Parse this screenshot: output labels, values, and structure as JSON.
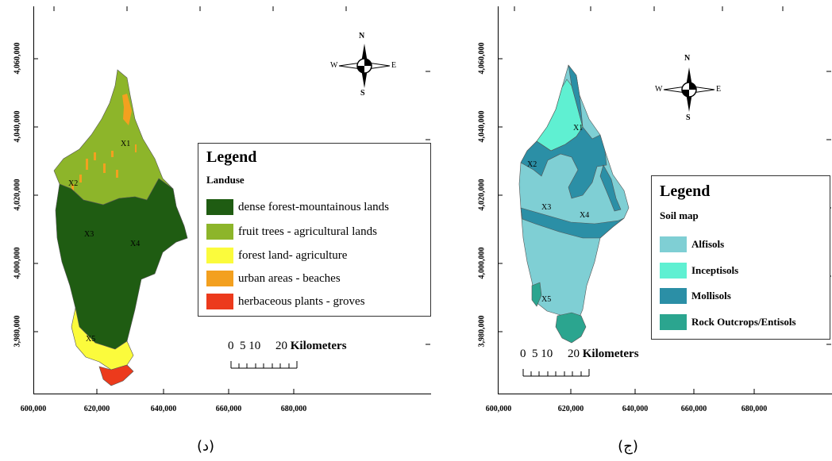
{
  "left_map": {
    "y_ticks": [
      "4,060,000",
      "4,040,000",
      "4,020,000",
      "4,000,000",
      "3,980,000"
    ],
    "x_ticks": [
      "600,000",
      "620,000",
      "640,000",
      "660,000",
      "680,000"
    ],
    "north_arrow": {
      "n": "N",
      "s": "S",
      "e": "E",
      "w": "W",
      "icon": "compass-rose-icon"
    },
    "legend": {
      "title": "Legend",
      "subtitle": "Landuse",
      "items": [
        {
          "label": "dense forest-mountainous lands",
          "color": "#1f5c12"
        },
        {
          "label": "fruit trees - agricultural lands",
          "color": "#8db52a"
        },
        {
          "label": "forest land- agriculture",
          "color": "#fbfb3c"
        },
        {
          "label": "urban areas - beaches",
          "color": "#f3a01f"
        },
        {
          "label": "herbaceous plants - groves",
          "color": "#ec3a1c"
        }
      ]
    },
    "scale": {
      "numbers": "0  5 10     20",
      "unit": "Kilometers"
    },
    "stations": [
      "X1",
      "X2",
      "X3",
      "X4",
      "X5"
    ],
    "caption": "(د)"
  },
  "right_map": {
    "y_ticks": [
      "4,060,000",
      "4,040,000",
      "4,020,000",
      "4,000,000",
      "3,980,000"
    ],
    "x_ticks": [
      "600,000",
      "620,000",
      "640,000",
      "660,000",
      "680,000"
    ],
    "north_arrow": {
      "n": "N",
      "s": "S",
      "e": "E",
      "w": "W",
      "icon": "compass-rose-icon"
    },
    "legend": {
      "title": "Legend",
      "subtitle": "Soil map",
      "items": [
        {
          "label": "Alfisols",
          "color": "#7fcfd4"
        },
        {
          "label": "Inceptisols",
          "color": "#5ff0d2"
        },
        {
          "label": "Mollisols",
          "color": "#2b8fa6"
        },
        {
          "label": "Rock Outcrops/Entisols",
          "color": "#2ba58f"
        }
      ]
    },
    "scale": {
      "numbers": "0  5 10     20",
      "unit": "Kilometers"
    },
    "stations": [
      "X1",
      "X2",
      "X3",
      "X4",
      "X5"
    ],
    "caption": "(ج)"
  }
}
